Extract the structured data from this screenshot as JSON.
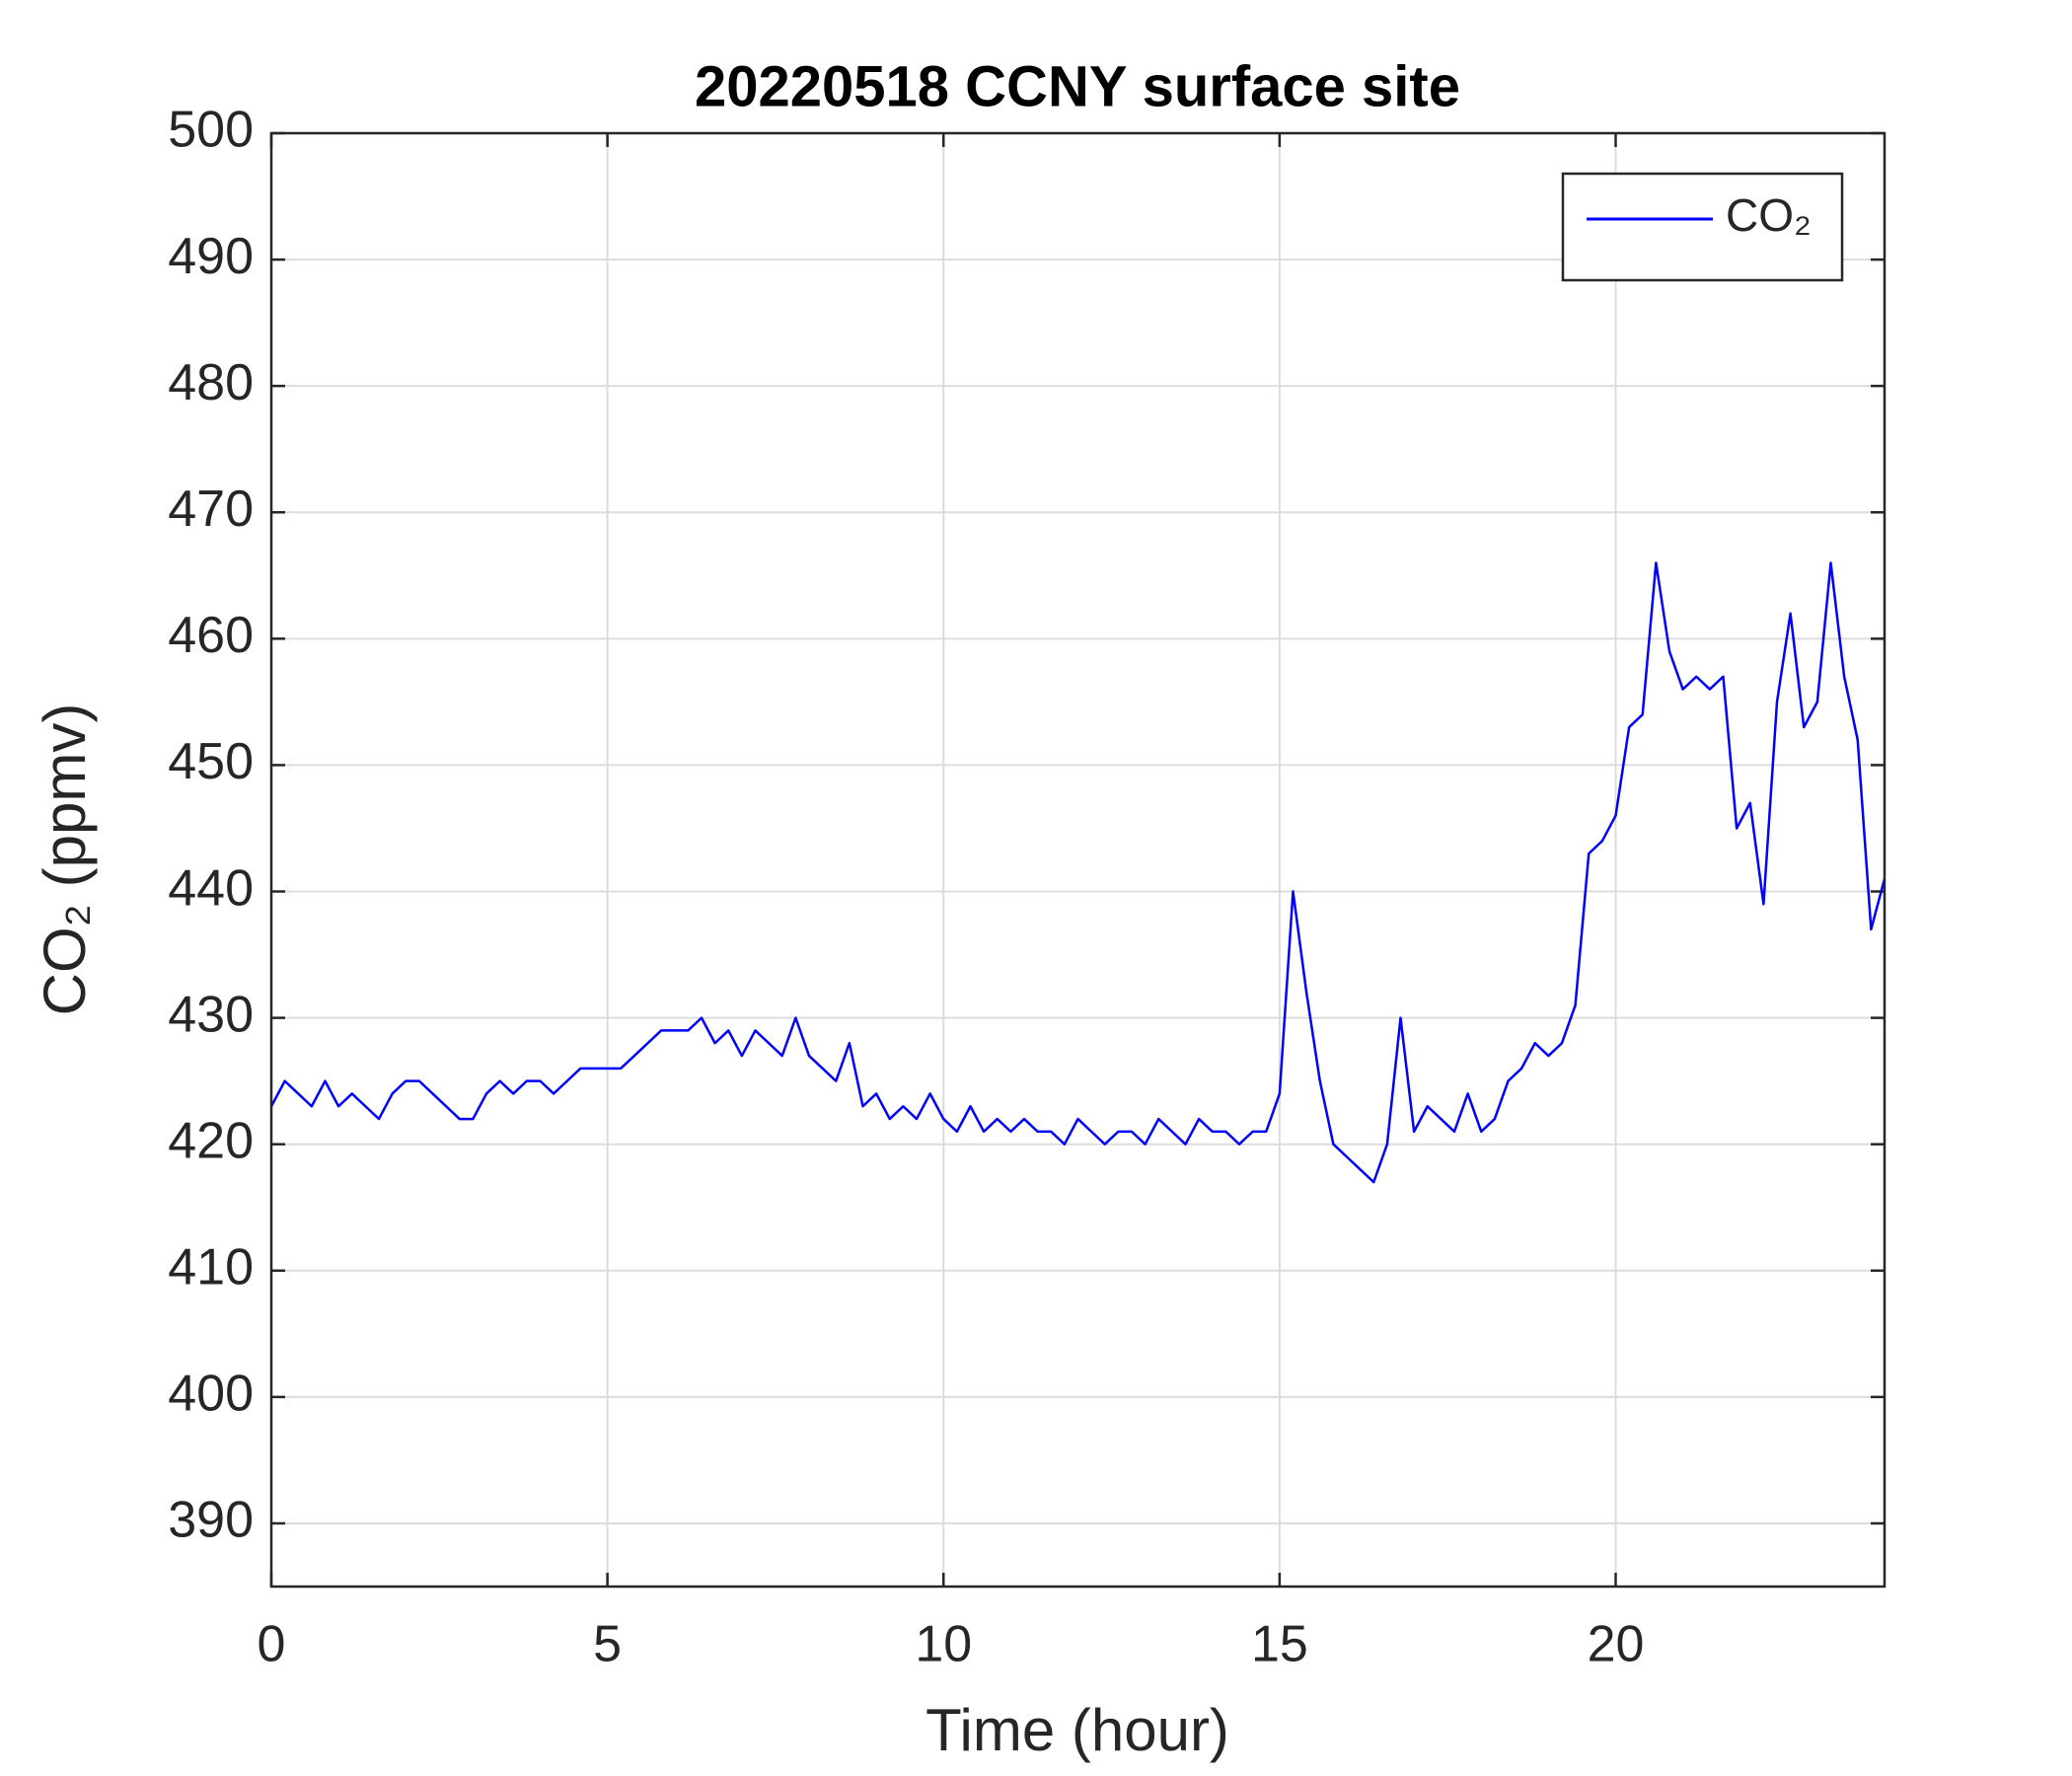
{
  "chart_data": {
    "type": "line",
    "title": "20220518 CCNY surface site",
    "x_label": "Time (hour)",
    "y_label": "CO₂ (ppmv)",
    "x": [
      0,
      0.2,
      0.4,
      0.6,
      0.8,
      1,
      1.2,
      1.4,
      1.6,
      1.8,
      2,
      2.2,
      2.4,
      2.6,
      2.8,
      3,
      3.2,
      3.4,
      3.6,
      3.8,
      4,
      4.2,
      4.4,
      4.6,
      4.8,
      5,
      5.2,
      5.4,
      5.6,
      5.8,
      6,
      6.2,
      6.4,
      6.6,
      6.8,
      7,
      7.2,
      7.4,
      7.6,
      7.8,
      8,
      8.2,
      8.4,
      8.6,
      8.8,
      9,
      9.2,
      9.4,
      9.6,
      9.8,
      10,
      10.2,
      10.4,
      10.6,
      10.8,
      11,
      11.2,
      11.4,
      11.6,
      11.8,
      12,
      12.2,
      12.4,
      12.6,
      12.8,
      13,
      13.2,
      13.4,
      13.6,
      13.8,
      14,
      14.2,
      14.4,
      14.6,
      14.8,
      15,
      15.2,
      15.4,
      15.6,
      15.8,
      16,
      16.2,
      16.4,
      16.6,
      16.8,
      17,
      17.2,
      17.4,
      17.6,
      17.8,
      18,
      18.2,
      18.4,
      18.6,
      18.8,
      19,
      19.2,
      19.4,
      19.6,
      19.8,
      20,
      20.2,
      20.4,
      20.6,
      20.8,
      21,
      21.2,
      21.4,
      21.6,
      21.8,
      22,
      22.2,
      22.4,
      22.6,
      22.8,
      23,
      23.2,
      23.4,
      23.6,
      23.8,
      24
    ],
    "series": [
      {
        "name": "CO₂",
        "color": "#0000ff",
        "values": [
          423,
          425,
          424,
          423,
          425,
          423,
          424,
          423,
          422,
          424,
          425,
          425,
          424,
          423,
          422,
          422,
          424,
          425,
          424,
          425,
          425,
          424,
          425,
          426,
          426,
          426,
          426,
          427,
          428,
          429,
          429,
          429,
          430,
          428,
          429,
          427,
          429,
          428,
          427,
          430,
          427,
          426,
          425,
          428,
          423,
          424,
          422,
          423,
          422,
          424,
          422,
          421,
          423,
          421,
          422,
          421,
          422,
          421,
          421,
          420,
          422,
          421,
          420,
          421,
          421,
          420,
          422,
          421,
          420,
          422,
          421,
          421,
          420,
          421,
          421,
          424,
          440,
          432,
          425,
          420,
          419,
          418,
          417,
          420,
          430,
          421,
          423,
          422,
          421,
          424,
          421,
          422,
          425,
          426,
          428,
          427,
          428,
          431,
          443,
          444,
          446,
          453,
          454,
          466,
          459,
          456,
          457,
          456,
          457,
          445,
          447,
          439,
          455,
          462,
          453,
          455,
          466,
          457,
          452,
          437,
          441
        ]
      }
    ],
    "xlim": [
      0,
      24
    ],
    "xticks": [
      0,
      5,
      10,
      15,
      20
    ],
    "ylim": [
      385,
      500
    ],
    "yticks": [
      390,
      400,
      410,
      420,
      430,
      440,
      450,
      460,
      470,
      480,
      490,
      500
    ],
    "grid": true,
    "legend_position": "upper right"
  }
}
